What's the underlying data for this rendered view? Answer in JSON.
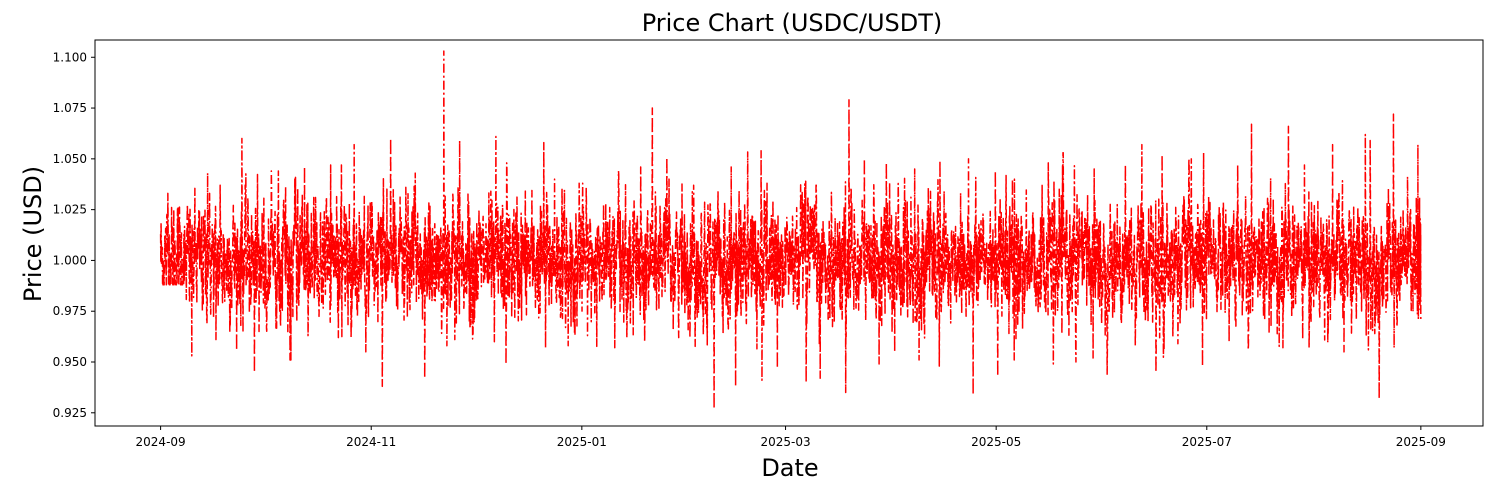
{
  "chart_data": {
    "type": "line",
    "title": "Price Chart (USDC/USDT)",
    "xlabel": "Date",
    "ylabel": "Price (USD)",
    "x_start": "2024-09-01",
    "x_end": "2025-09-01",
    "xlim": [
      "2024-08-13",
      "2025-09-19"
    ],
    "ylim": [
      0.9185,
      1.1085
    ],
    "x_ticks": [
      "2024-09",
      "2024-11",
      "2025-01",
      "2025-03",
      "2025-05",
      "2025-07",
      "2025-09"
    ],
    "y_ticks": [
      "0.925",
      "0.950",
      "0.975",
      "1.000",
      "1.025",
      "1.050",
      "1.075",
      "1.100"
    ],
    "grid": false,
    "series": [
      {
        "color": "#ff0000",
        "line_style": "dashdot",
        "x": [
          "2024-09-01",
          "2024-09-08",
          "2024-09-15",
          "2024-09-22",
          "2024-09-29",
          "2024-10-06",
          "2024-10-13",
          "2024-10-20",
          "2024-10-27",
          "2024-11-03",
          "2024-11-10",
          "2024-11-17",
          "2024-11-24",
          "2024-12-01",
          "2024-12-08",
          "2024-12-15",
          "2024-12-22",
          "2024-12-29",
          "2025-01-05",
          "2025-01-12",
          "2025-01-19",
          "2025-01-26",
          "2025-02-02",
          "2025-02-09",
          "2025-02-16",
          "2025-02-23",
          "2025-03-02",
          "2025-03-09",
          "2025-03-16",
          "2025-03-23",
          "2025-03-30",
          "2025-04-06",
          "2025-04-13",
          "2025-04-20",
          "2025-04-27",
          "2025-05-04",
          "2025-05-11",
          "2025-05-18",
          "2025-05-25",
          "2025-06-01",
          "2025-06-08",
          "2025-06-15",
          "2025-06-22",
          "2025-06-29",
          "2025-07-06",
          "2025-07-13",
          "2025-07-20",
          "2025-07-27",
          "2025-08-03",
          "2025-08-10",
          "2025-08-17",
          "2025-08-24",
          "2025-08-31"
        ],
        "y_min": [
          0.988,
          0.953,
          0.961,
          0.945,
          0.965,
          0.951,
          0.963,
          0.962,
          0.955,
          0.938,
          0.942,
          0.958,
          0.961,
          0.96,
          0.949,
          0.957,
          0.958,
          0.963,
          0.957,
          0.962,
          0.96,
          0.962,
          0.927,
          0.938,
          0.941,
          0.947,
          0.94,
          0.942,
          0.935,
          0.949,
          0.955,
          0.951,
          0.948,
          0.934,
          0.943,
          0.951,
          0.949,
          0.95,
          0.952,
          0.944,
          0.958,
          0.945,
          0.959,
          0.948,
          0.96,
          0.956,
          0.957,
          0.957,
          0.955,
          0.956,
          0.932,
          0.957,
          0.971
        ],
        "y_max": [
          1.033,
          1.043,
          1.037,
          1.06,
          1.044,
          1.046,
          1.031,
          1.047,
          1.057,
          1.06,
          1.043,
          1.103,
          1.059,
          1.061,
          1.048,
          1.058,
          1.04,
          1.038,
          1.044,
          1.046,
          1.075,
          1.04,
          1.037,
          1.046,
          1.054,
          1.038,
          1.039,
          1.037,
          1.079,
          1.05,
          1.048,
          1.045,
          1.049,
          1.05,
          1.044,
          1.04,
          1.048,
          1.053,
          1.045,
          1.047,
          1.057,
          1.052,
          1.05,
          1.053,
          1.047,
          1.067,
          1.066,
          1.047,
          1.057,
          1.062,
          1.059,
          1.072,
          1.057
        ]
      }
    ]
  }
}
